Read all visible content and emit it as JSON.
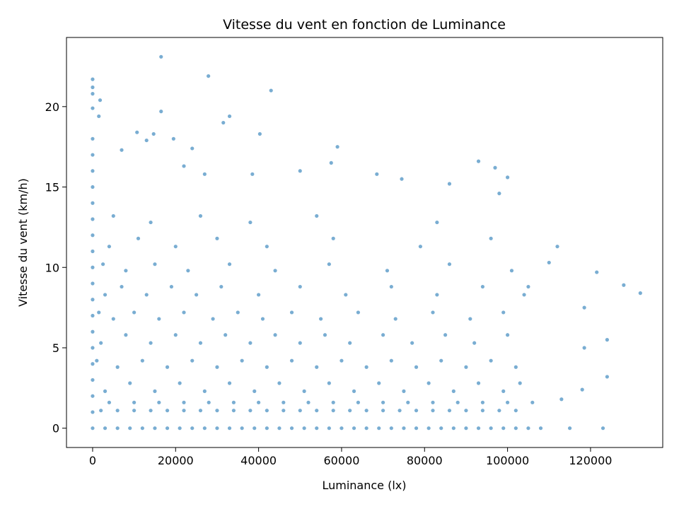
{
  "chart_data": {
    "type": "scatter",
    "title": "Vitesse du vent en fonction de Luminance",
    "xlabel": "Luminance (lx)",
    "ylabel": "Vitesse du vent (km/h)",
    "color": "#1f77b4",
    "xlim": [
      -6300,
      137400
    ],
    "ylim": [
      -1.2,
      24.3
    ],
    "xticks": [
      0,
      20000,
      40000,
      60000,
      80000,
      100000,
      120000
    ],
    "yticks": [
      0,
      5,
      10,
      15,
      20
    ],
    "x": [
      0,
      3000,
      6000,
      9000,
      12000,
      15000,
      18000,
      21000,
      24000,
      27000,
      30000,
      33000,
      36000,
      39000,
      42000,
      45000,
      48000,
      51000,
      54000,
      57000,
      60000,
      63000,
      66000,
      69000,
      72000,
      75000,
      78000,
      81000,
      84000,
      87000,
      90000,
      93000,
      96000,
      99000,
      102000,
      105000,
      108000,
      2000,
      6000,
      10000,
      14000,
      18000,
      22000,
      26000,
      30000,
      34000,
      38000,
      42000,
      46000,
      50000,
      54000,
      58000,
      62000,
      66000,
      70000,
      74000,
      78000,
      82000,
      86000,
      90000,
      94000,
      98000,
      102000,
      4000,
      10000,
      16000,
      22000,
      28000,
      34000,
      40000,
      46000,
      52000,
      58000,
      64000,
      70000,
      76000,
      82000,
      88000,
      94000,
      100000,
      106000,
      0,
      0,
      0,
      0,
      0,
      0,
      0,
      0,
      0,
      0,
      0,
      0,
      0,
      0,
      0,
      0,
      0,
      0,
      3000,
      9000,
      15000,
      21000,
      27000,
      33000,
      39000,
      45000,
      51000,
      57000,
      63000,
      69000,
      75000,
      81000,
      87000,
      93000,
      99000,
      103000,
      1000,
      6000,
      12000,
      18000,
      24000,
      30000,
      36000,
      42000,
      48000,
      54000,
      60000,
      66000,
      72000,
      78000,
      84000,
      90000,
      96000,
      102000,
      2000,
      8000,
      14000,
      20000,
      26000,
      32000,
      38000,
      44000,
      50000,
      56000,
      62000,
      70000,
      77000,
      85000,
      92000,
      100000,
      1500,
      5000,
      10000,
      16000,
      22000,
      29000,
      35000,
      41000,
      48000,
      55000,
      64000,
      73000,
      82000,
      91000,
      99000,
      3000,
      7000,
      13000,
      19000,
      25000,
      31000,
      40000,
      50000,
      61000,
      72000,
      83000,
      94000,
      104000,
      2500,
      8000,
      15000,
      23000,
      33000,
      44000,
      57000,
      71000,
      86000,
      101000,
      4000,
      11000,
      20000,
      30000,
      42000,
      58000,
      79000,
      96000,
      5000,
      14000,
      26000,
      38000,
      54000,
      83000,
      16500,
      27900,
      43000,
      0,
      0,
      0,
      1800,
      16500,
      33000,
      31500,
      0,
      1500,
      10700,
      14700,
      19500,
      40300,
      59000,
      57500,
      93000,
      97000,
      100000,
      68500,
      74500,
      86000,
      98000,
      112000,
      110000,
      121500,
      128000,
      132000,
      118500,
      124000,
      118500,
      118000,
      124000,
      123000,
      115000,
      113000,
      105000,
      50000,
      38500,
      27000,
      22000,
      24000,
      7000,
      13000
    ],
    "y": [
      0,
      0,
      0,
      0,
      0,
      0,
      0,
      0,
      0,
      0,
      0,
      0,
      0,
      0,
      0,
      0,
      0,
      0,
      0,
      0,
      0,
      0,
      0,
      0,
      0,
      0,
      0,
      0,
      0,
      0,
      0,
      0,
      0,
      0,
      0,
      0,
      0,
      1.1,
      1.1,
      1.1,
      1.1,
      1.1,
      1.1,
      1.1,
      1.1,
      1.1,
      1.1,
      1.1,
      1.1,
      1.1,
      1.1,
      1.1,
      1.1,
      1.1,
      1.1,
      1.1,
      1.1,
      1.1,
      1.1,
      1.1,
      1.1,
      1.1,
      1.1,
      1.6,
      1.6,
      1.6,
      1.6,
      1.6,
      1.6,
      1.6,
      1.6,
      1.6,
      1.6,
      1.6,
      1.6,
      1.6,
      1.6,
      1.6,
      1.6,
      1.6,
      1.6,
      1,
      2,
      3,
      4,
      5,
      6,
      7,
      8,
      9,
      10,
      11,
      12,
      13,
      14,
      15,
      16,
      17,
      18,
      2.3,
      2.8,
      2.3,
      2.8,
      2.3,
      2.8,
      2.3,
      2.8,
      2.3,
      2.8,
      2.3,
      2.8,
      2.3,
      2.8,
      2.3,
      2.8,
      2.3,
      2.8,
      4.2,
      3.8,
      4.2,
      3.8,
      4.2,
      3.8,
      4.2,
      3.8,
      4.2,
      3.8,
      4.2,
      3.8,
      4.2,
      3.8,
      4.2,
      3.8,
      4.2,
      3.8,
      5.3,
      5.8,
      5.3,
      5.8,
      5.3,
      5.8,
      5.3,
      5.8,
      5.3,
      5.8,
      5.3,
      5.8,
      5.3,
      5.8,
      5.3,
      5.8,
      7.2,
      6.8,
      7.2,
      6.8,
      7.2,
      6.8,
      7.2,
      6.8,
      7.2,
      6.8,
      7.2,
      6.8,
      7.2,
      6.8,
      7.2,
      8.3,
      8.8,
      8.3,
      8.8,
      8.3,
      8.8,
      8.3,
      8.8,
      8.3,
      8.8,
      8.3,
      8.8,
      8.3,
      10.2,
      9.8,
      10.2,
      9.8,
      10.2,
      9.8,
      10.2,
      9.8,
      10.2,
      9.8,
      11.3,
      11.8,
      11.3,
      11.8,
      11.3,
      11.8,
      11.3,
      11.8,
      13.2,
      12.8,
      13.2,
      12.8,
      13.2,
      12.8,
      23.1,
      21.9,
      21.0,
      21.7,
      21.2,
      20.8,
      20.4,
      19.7,
      19.4,
      19.0,
      19.9,
      19.4,
      18.4,
      18.3,
      18.0,
      18.3,
      17.5,
      16.5,
      16.6,
      16.2,
      15.6,
      15.8,
      15.5,
      15.2,
      14.6,
      11.3,
      10.3,
      9.7,
      8.9,
      8.4,
      7.5,
      5.5,
      5.0,
      2.4,
      3.2,
      0,
      0,
      1.8,
      8.8,
      16.0,
      15.8,
      15.8,
      16.3,
      17.4,
      17.3,
      17.9
    ]
  }
}
